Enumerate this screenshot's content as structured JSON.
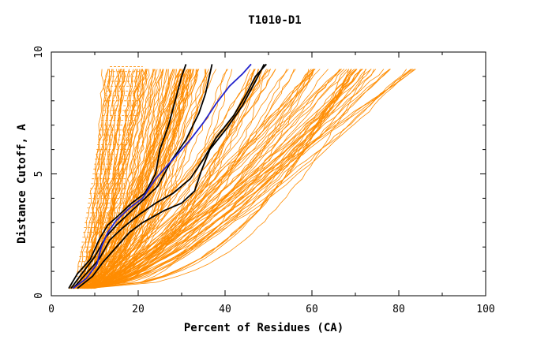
{
  "chart_data": {
    "type": "line",
    "title": "T1010-D1",
    "xlabel": "Percent of Residues (CA)",
    "ylabel": "Distance Cutoff, A",
    "xlim": [
      0,
      100
    ],
    "ylim": [
      0,
      10
    ],
    "x_ticks": [
      "0",
      "20",
      "40",
      "60",
      "80",
      "100"
    ],
    "y_ticks": [
      "0",
      "5",
      "10"
    ],
    "grid": false,
    "colors": {
      "models": "#ff8c00",
      "highlight_black": "#000000",
      "highlight_blue": "#2222cc",
      "axes": "#000000"
    },
    "background_series": {
      "name": "models",
      "count": 160,
      "start_pct_range": [
        4,
        10
      ],
      "end_pct_range": [
        30,
        86
      ],
      "y_range": [
        0.3,
        9.5
      ]
    },
    "series": [
      {
        "name": "black-1",
        "color": "#000000",
        "x": [
          4,
          6,
          9,
          11,
          13,
          15.5,
          18.5,
          21.5,
          24,
          25,
          27,
          28.5,
          30,
          31
        ],
        "y": [
          0.3,
          0.9,
          1.5,
          2.3,
          2.9,
          3.3,
          3.8,
          4.2,
          5.0,
          6.0,
          7.0,
          8.0,
          9.0,
          9.5
        ]
      },
      {
        "name": "black-2",
        "color": "#000000",
        "x": [
          4.5,
          7,
          10,
          12.5,
          15,
          18,
          21,
          24.5,
          27.5,
          31,
          34,
          35.5,
          37
        ],
        "y": [
          0.3,
          0.9,
          1.6,
          2.4,
          2.9,
          3.4,
          3.9,
          4.5,
          5.5,
          6.4,
          7.5,
          8.3,
          9.5
        ]
      },
      {
        "name": "black-3",
        "color": "#000000",
        "x": [
          5,
          8,
          11,
          13.5,
          16.5,
          20,
          24,
          28,
          32,
          35,
          38,
          42,
          45,
          47,
          49.5
        ],
        "y": [
          0.3,
          0.9,
          1.5,
          2.3,
          2.8,
          3.3,
          3.8,
          4.2,
          4.8,
          5.6,
          6.5,
          7.4,
          8.3,
          9.0,
          9.5
        ]
      },
      {
        "name": "black-4",
        "color": "#000000",
        "x": [
          6,
          9.5,
          12,
          15,
          18,
          21,
          26,
          30,
          33,
          34.5,
          36.5,
          40.5,
          44,
          47,
          49
        ],
        "y": [
          0.3,
          0.8,
          1.4,
          2.0,
          2.6,
          3.0,
          3.5,
          3.8,
          4.3,
          5.1,
          6.0,
          6.9,
          7.8,
          8.8,
          9.5
        ]
      },
      {
        "name": "blue",
        "color": "#2222cc",
        "x": [
          5,
          8,
          10.5,
          11.5,
          13,
          15,
          18,
          21,
          24,
          28,
          32,
          35,
          38,
          41,
          44,
          46
        ],
        "y": [
          0.3,
          0.7,
          1.3,
          2.0,
          2.6,
          3.1,
          3.6,
          4.0,
          4.8,
          5.6,
          6.4,
          7.1,
          7.9,
          8.6,
          9.1,
          9.5
        ]
      }
    ]
  }
}
